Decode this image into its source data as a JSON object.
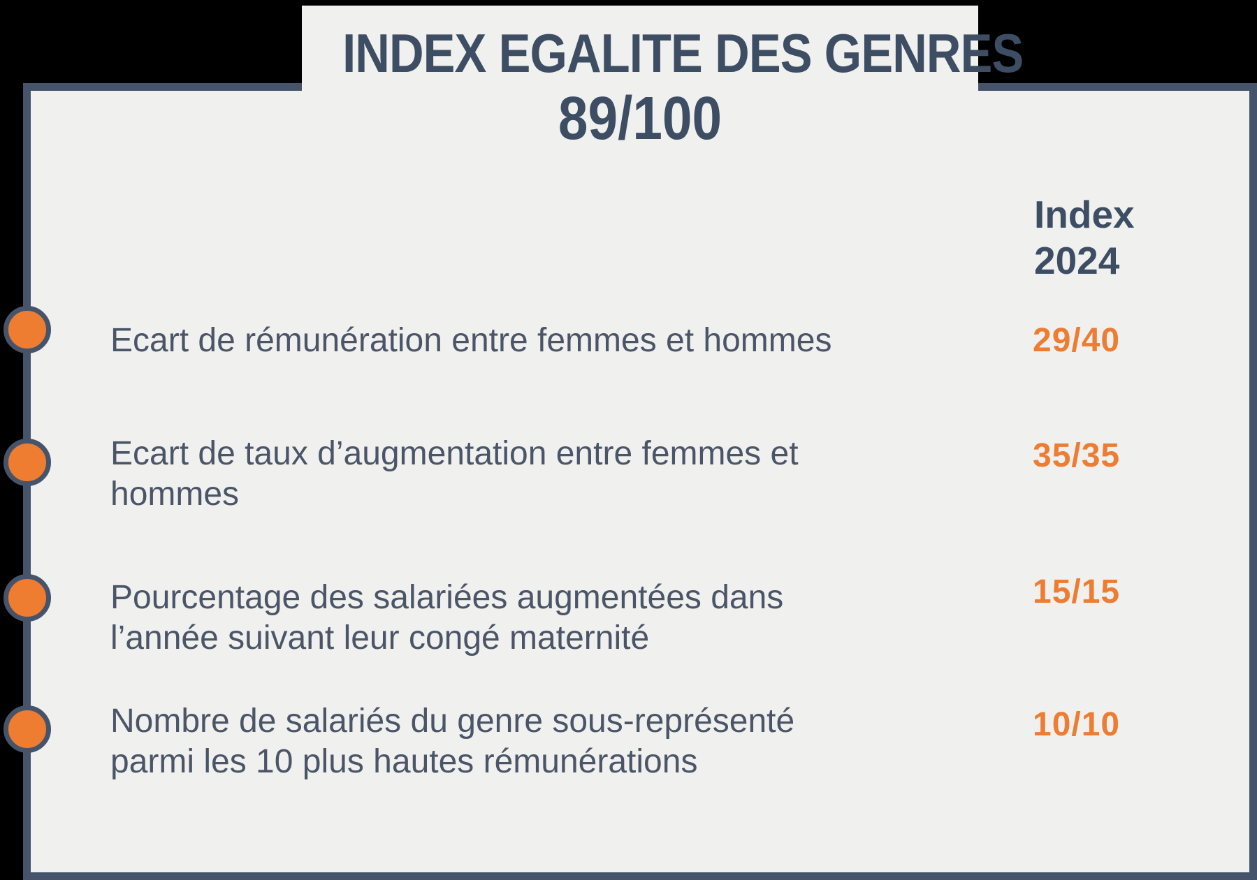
{
  "banner": {
    "title": "INDEX EGALITE DES GENRES",
    "score": "89/100"
  },
  "table": {
    "column_header": "Index\n2024",
    "rows": [
      {
        "label": "Ecart de rémunération entre femmes et hommes",
        "value": "29/40"
      },
      {
        "label": "Ecart de taux d’augmentation entre femmes et\nhommes",
        "value": "35/35"
      },
      {
        "label": "Pourcentage des salariées augmentées dans\nl’année suivant leur congé maternité",
        "value": "15/15"
      },
      {
        "label": "Nombre de salariés du genre sous-représenté\nparmi les 10 plus hautes rémunérations",
        "value": "10/10"
      }
    ]
  },
  "colors": {
    "page_background": "#000000",
    "card_background": "#F0F0EE",
    "frame_slate": "#46546B",
    "title_text": "#3D4D63",
    "body_text": "#4A5568",
    "accent_orange": "#EE7D31"
  }
}
